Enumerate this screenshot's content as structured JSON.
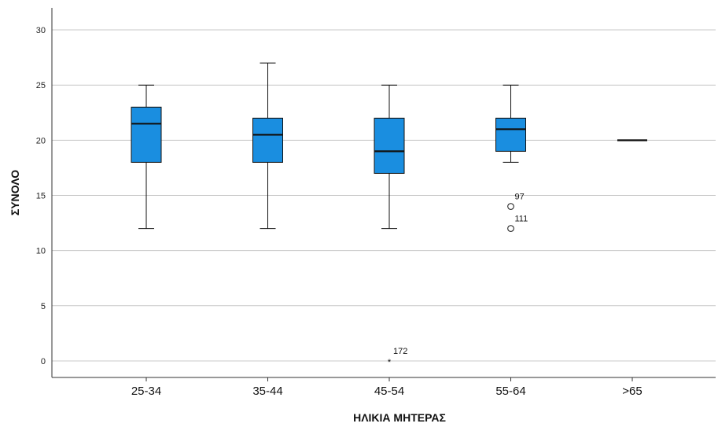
{
  "chart_data": {
    "type": "boxplot",
    "xlabel": "ΗΛΙΚΙΑ ΜΗΤΕΡΑΣ",
    "ylabel": "ΣΥΝΟΛΟ",
    "ylim": [
      -1.5,
      32
    ],
    "yticks": [
      0,
      5,
      10,
      15,
      20,
      25,
      30
    ],
    "grid": true,
    "box_color": "#1a8ee0",
    "categories": [
      "25-34",
      "35-44",
      "45-54",
      "55-64",
      ">65"
    ],
    "boxes": [
      {
        "category": "25-34",
        "min": 12,
        "q1": 18,
        "median": 21.5,
        "q3": 23,
        "max": 25
      },
      {
        "category": "35-44",
        "min": 12,
        "q1": 18,
        "median": 20.5,
        "q3": 22,
        "max": 27
      },
      {
        "category": "45-54",
        "min": 12,
        "q1": 17,
        "median": 19,
        "q3": 22,
        "max": 25
      },
      {
        "category": "55-64",
        "min": 18,
        "q1": 19,
        "median": 21,
        "q3": 22,
        "max": 25
      },
      {
        "category": ">65",
        "min": 20,
        "q1": 20,
        "median": 20,
        "q3": 20,
        "max": 20
      }
    ],
    "outliers": [
      {
        "category": "45-54",
        "value": 0,
        "marker": "extreme",
        "label": "172"
      },
      {
        "category": "55-64",
        "value": 14,
        "marker": "outlier",
        "label": "97"
      },
      {
        "category": "55-64",
        "value": 12,
        "marker": "outlier",
        "label": "111"
      }
    ]
  }
}
